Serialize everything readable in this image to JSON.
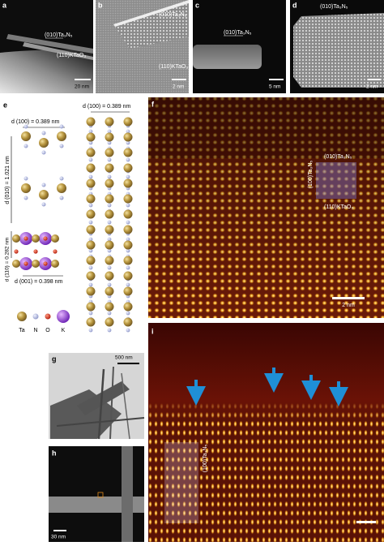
{
  "panels": {
    "a": {
      "label": "a",
      "film": "(010)Ta₃N₅",
      "substrate": "(110)KTaO₃",
      "scale_bar": "20 nm"
    },
    "b": {
      "label": "b",
      "film": "(010)Ta₃N₅",
      "substrate": "(110)KTaO₃",
      "scale_bar": "2 nm"
    },
    "c": {
      "label": "c",
      "film": "(010)Ta₃N₅",
      "scale_bar": "5 nm"
    },
    "d": {
      "label": "d",
      "film": "(010)Ta₃N₅",
      "scale_bar": "2 nm"
    },
    "e": {
      "label": "e",
      "d100_left": "d (100) = 0.389 nm",
      "d010": "d (010) = 1.021 nm",
      "d110": "d (110) = 0.282 nm",
      "d001": "d (001) = 0.398 nm",
      "d100_right": "d (100) = 0.389 nm",
      "legend": [
        "Ta",
        "N",
        "O",
        "K"
      ]
    },
    "f": {
      "label": "f",
      "film": "(010)Ta₃N₅",
      "side": "(100)Ta₃N₅",
      "substrate": "(110)KTaO₃",
      "scale_bar": "2 nm"
    },
    "g": {
      "label": "g",
      "scale_bar": "500 nm"
    },
    "h": {
      "label": "h",
      "scale_bar": "30 nm"
    },
    "i": {
      "label": "i",
      "side": "(100)Ta₃N₅"
    }
  }
}
